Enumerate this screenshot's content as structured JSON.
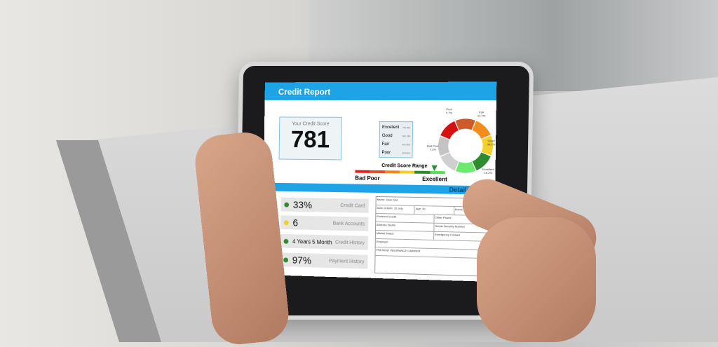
{
  "header": {
    "title": "Credit Report"
  },
  "score": {
    "label": "Your Credit Score",
    "value": "781"
  },
  "range_table": [
    {
      "label": "Excellent",
      "range": "781-850"
    },
    {
      "label": "Good",
      "range": "661-780"
    },
    {
      "label": "Fair",
      "range": "601-660"
    },
    {
      "label": "Poor",
      "range": "300-600"
    }
  ],
  "range": {
    "title": "Credit Score Range",
    "low_label": "Bad Poor",
    "high_label": "Excellent",
    "colors": [
      "#e02020",
      "#d9502a",
      "#f08a20",
      "#f2d02a",
      "#2f8a2f",
      "#55e055"
    ]
  },
  "donut": [
    {
      "label": "Poor",
      "value": "9.7%",
      "color": "#cc5a2a"
    },
    {
      "label": "Fair",
      "value": "14.7%",
      "color": "#f28c1c"
    },
    {
      "label": "",
      "value": "",
      "color": "#f3d12c"
    },
    {
      "label": "Good",
      "value": "38.2%",
      "color": "#2e8b2e"
    },
    {
      "label": "Excellent",
      "value": "15.2%",
      "color": "#6ee86e"
    },
    {
      "label": "",
      "value": "",
      "color": "#cfcfcf"
    },
    {
      "label": "",
      "value": "",
      "color": "#c4c4c4"
    },
    {
      "label": "Bad Poor",
      "value": "7.3%",
      "color": "#d41010"
    }
  ],
  "details": {
    "title": "Details"
  },
  "metrics": [
    {
      "value": "33%",
      "name": "Credit Card",
      "color": "#2e8b2e"
    },
    {
      "value": "6",
      "name": "Bank Accounts",
      "color": "#f0d020"
    },
    {
      "value": "4 Years 5 Month",
      "name": "Credit History",
      "color": "#2e8b2e"
    },
    {
      "value": "97%",
      "name": "Payment History",
      "color": "#2e8b2e"
    }
  ],
  "form": {
    "name": "Name: Jane Doe",
    "dob": "Date of Birth: 15 July",
    "age": "Age: 30",
    "home_phone": "Home Phone",
    "other_phone": "Other Phone",
    "preferred": "Preferred credit",
    "ssn": "Social Security Number",
    "address": "Address: Berlin",
    "emergency": "Emergency Contact",
    "marital": "Marital Status",
    "employer": "Employer",
    "insurance": "PRESENT INSURANCE CARRIER"
  }
}
